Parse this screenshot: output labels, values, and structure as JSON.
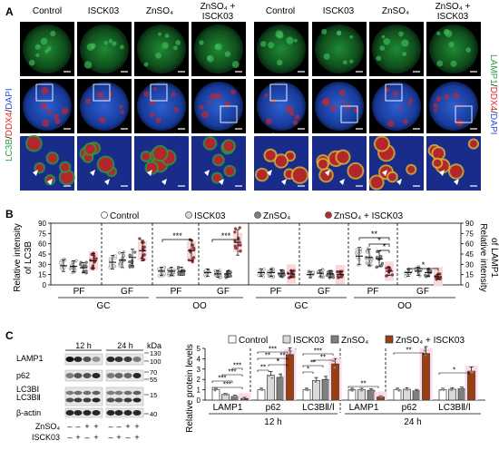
{
  "panel_a": {
    "letter": "A",
    "columns_left": [
      "Control",
      "ISCK03",
      "ZnSO₄",
      "ZnSO₄ +",
      "ISCK03"
    ],
    "columns_right": [
      "Control",
      "ISCK03",
      "ZnSO₄",
      "ZnSO₄ +",
      "ISCK03"
    ],
    "left_label_parts": [
      "LC3B",
      "/",
      "DDX4",
      "/",
      "DAPI"
    ],
    "right_label_parts": [
      "LAMP1",
      "/",
      "DDX4",
      "/",
      "DAPI"
    ],
    "colors": {
      "lc3b": "#2ea043",
      "ddx4": "#e0242b",
      "dapi": "#2a4fd6",
      "lamp1": "#2ea043"
    }
  },
  "panel_b": {
    "letter": "B",
    "legend": [
      "Control",
      "ISCK03",
      "ZnSO₄",
      "ZnSO₄ + ISCK03"
    ],
    "legend_colors": [
      "#ffffff",
      "#d9d9d9",
      "#7f7f7f",
      "#c0262d"
    ],
    "left_ylabel_1": "Relative intensity",
    "left_ylabel_2": "of LC3B",
    "right_ylabel_1": "Relative intensity",
    "right_ylabel_2": "of LAMP1",
    "yticks": [
      "0",
      "15",
      "30",
      "45",
      "60",
      "75",
      "90"
    ],
    "significance": "***",
    "sig_lamp_a": "**",
    "sig_lamp_b": "*",
    "sig_lamp_c": "*",
    "sig_lamp_d": "*",
    "sub_labels": [
      "PF",
      "GF",
      "PF",
      "GF",
      "PF",
      "GF",
      "PF",
      "GF"
    ],
    "group_labels": [
      "GC",
      "OO",
      "GC",
      "OO"
    ]
  },
  "panel_c": {
    "letter": "C",
    "blot_time_1": "12 h",
    "blot_time_2": "24 h",
    "kda": "kDa",
    "proteins": [
      "LAMP1",
      "p62",
      "LC3BⅠ",
      "LC3BⅡ",
      "β-actin"
    ],
    "mw": [
      "130",
      "100",
      "70",
      "55",
      "15",
      "40"
    ],
    "treat_row_1": "ZnSO₄",
    "treat_row_2": "ISCK03",
    "treat_row_1_signs": [
      "–",
      "–",
      "+",
      "+",
      "–",
      "–",
      "+",
      "+"
    ],
    "treat_row_2_signs": [
      "–",
      "+",
      "–",
      "+",
      "–",
      "+",
      "–",
      "+"
    ],
    "bar_legend": [
      "Control",
      "ISCK03",
      "ZnSO₄",
      "ZnSO₄ + ISCK03"
    ],
    "bar_ylabel": "Relative protein levels",
    "bar_yticks": [
      "0",
      "1",
      "2",
      "3",
      "4",
      "5"
    ],
    "bar_categories": [
      "LAMP1",
      "p62",
      "LC3BⅡ/Ⅰ",
      "LAMP1",
      "p62",
      "LC3BⅡ/Ⅰ"
    ],
    "bar_times": [
      "12 h",
      "24 h"
    ],
    "bar_colors": [
      "#ffffff",
      "#d9d9d9",
      "#7f7f7f",
      "#9c3f10"
    ],
    "sig_3": "***",
    "sig_2": "**",
    "sig_1": "*"
  },
  "chart_data": [
    {
      "type": "scatter",
      "title": "",
      "ylabel": "Relative intensity of LC3B",
      "ylim": [
        0,
        90
      ],
      "groups": [
        "GC-PF",
        "GC-GF",
        "OO-PF",
        "OO-GF"
      ],
      "series": [
        {
          "name": "Control",
          "values": [
            28,
            33,
            20,
            18
          ]
        },
        {
          "name": "ISCK03",
          "values": [
            27,
            36,
            20,
            16
          ]
        },
        {
          "name": "ZnSO₄",
          "values": [
            25,
            40,
            20,
            16
          ]
        },
        {
          "name": "ZnSO₄ + ISCK03",
          "values": [
            35,
            50,
            50,
            62
          ]
        }
      ]
    },
    {
      "type": "scatter",
      "title": "",
      "ylabel": "Relative intensity of LAMP1",
      "ylim": [
        0,
        90
      ],
      "groups": [
        "GC-PF",
        "GC-GF",
        "OO-PF",
        "OO-GF"
      ],
      "series": [
        {
          "name": "Control",
          "values": [
            18,
            15,
            42,
            18
          ]
        },
        {
          "name": "ISCK03",
          "values": [
            18,
            17,
            40,
            20
          ]
        },
        {
          "name": "ZnSO₄",
          "values": [
            17,
            16,
            38,
            18
          ]
        },
        {
          "name": "ZnSO₄ + ISCK03",
          "values": [
            16,
            15,
            20,
            12
          ]
        }
      ]
    },
    {
      "type": "bar",
      "title": "",
      "ylabel": "Relative protein levels",
      "ylim": [
        0,
        5
      ],
      "categories": [
        "LAMP1 12 h",
        "p62 12 h",
        "LC3BⅡ/Ⅰ 12 h",
        "LAMP1 24 h",
        "p62 24 h",
        "LC3BⅡ/Ⅰ 24 h"
      ],
      "series": [
        {
          "name": "Control",
          "values": [
            1.0,
            1.0,
            1.0,
            1.0,
            1.0,
            1.0
          ]
        },
        {
          "name": "ISCK03",
          "values": [
            0.55,
            2.4,
            1.9,
            1.0,
            1.05,
            1.05
          ]
        },
        {
          "name": "ZnSO₄",
          "values": [
            0.35,
            2.2,
            2.0,
            0.95,
            0.9,
            1.1
          ]
        },
        {
          "name": "ZnSO₄ + ISCK03",
          "values": [
            0.15,
            4.4,
            3.5,
            0.3,
            4.5,
            2.8
          ]
        }
      ]
    }
  ]
}
